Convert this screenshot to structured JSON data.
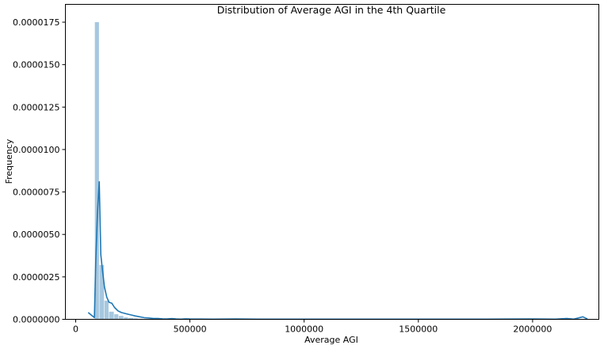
{
  "chart_data": {
    "type": "bar",
    "title": "Distribution of Average AGI in the 4th Quartile",
    "xlabel": "Average AGI",
    "ylabel": "Frequency",
    "xlim": [
      -45000,
      2290000
    ],
    "ylim": [
      0,
      1.855e-05
    ],
    "grid": false,
    "legend": "none",
    "x_ticks": [
      0,
      500000,
      1000000,
      1500000,
      2000000
    ],
    "x_tick_labels": [
      "0",
      "500000",
      "1000000",
      "1500000",
      "2000000"
    ],
    "y_ticks": [
      0,
      2.5e-06,
      5e-06,
      7.5e-06,
      1e-05,
      1.25e-05,
      1.5e-05,
      1.75e-05
    ],
    "y_tick_labels": [
      "0.0000000",
      "0.0000025",
      "0.0000050",
      "0.0000075",
      "0.0000100",
      "0.0000125",
      "0.0000150",
      "0.0000175"
    ],
    "histogram": {
      "bin_edges": [
        84000,
        104000,
        126000,
        146000,
        169000,
        189000,
        211000,
        231000,
        254000,
        274000,
        296000
      ],
      "values": [
        1.75e-05,
        3.2e-06,
        1.1e-06,
        4.5e-07,
        3e-07,
        2e-07,
        1.2e-07,
        8e-08,
        5e-08,
        3e-08
      ],
      "color": "#a6c7df"
    },
    "kde": {
      "color": "#1f77b4",
      "x": [
        55000,
        82000,
        88000,
        95000,
        103000,
        110000,
        118000,
        126000,
        136000,
        146000,
        158000,
        170000,
        185000,
        200000,
        215000,
        230000,
        245000,
        260000,
        280000,
        300000,
        320000,
        340000,
        360000,
        380000,
        400000,
        420000,
        440000,
        460000,
        480000,
        500000,
        600000,
        700000,
        800000,
        1000000,
        1200000,
        1400000,
        1600000,
        1800000,
        2000000,
        2100000,
        2150000,
        2180000,
        2200000,
        2220000,
        2240000
      ],
      "y": [
        4e-07,
        1e-07,
        3.4e-06,
        6.2e-06,
        8.1e-06,
        3.8e-06,
        2.8e-06,
        1.9e-06,
        1.3e-06,
        1e-06,
        9.5e-07,
        7e-07,
        5e-07,
        4e-07,
        3.5e-07,
        3e-07,
        2.5e-07,
        2e-07,
        1.5e-07,
        1e-07,
        8e-08,
        5e-08,
        5e-08,
        3e-08,
        2e-08,
        4e-08,
        2e-08,
        1e-08,
        3e-08,
        2e-08,
        1e-08,
        2e-08,
        1e-08,
        1e-08,
        1e-08,
        1e-08,
        1e-08,
        1e-08,
        2e-08,
        1e-08,
        5e-08,
        1e-08,
        8e-08,
        1.5e-07,
        2e-08
      ]
    }
  }
}
